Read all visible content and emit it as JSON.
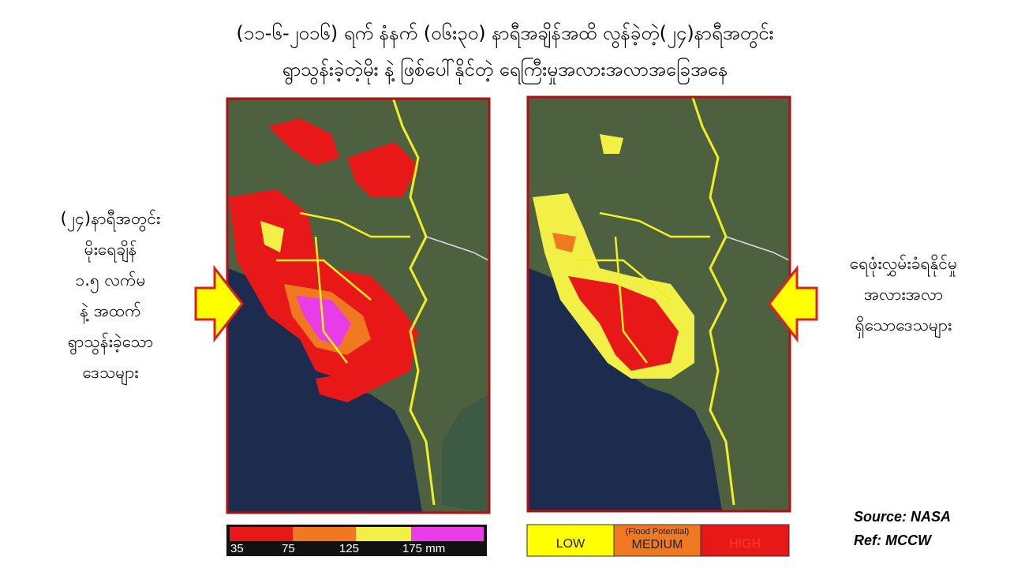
{
  "title": {
    "lines": [
      "(၁၁-၆-၂၀၁၆) ရက် နံနက် (၀၆း၃၀) နာရီအချိန်အထိ လွန်ခဲ့တဲ့(၂၄)နာရီအတွင်း",
      "ရွာသွန်းခဲ့တဲ့မိုး နဲ့ ဖြစ်ပေါ်နိုင်တဲ့ ရေကြီးမှုအလားအလာအခြေအနေ"
    ]
  },
  "left_note": {
    "lines": [
      "(၂၄)နာရီအတွင်း",
      "မိုးရေချိန်",
      "၁.၅ လက်မ",
      "နဲ့ အထက်",
      "ရွာသွန်းခဲ့သော",
      "ဒေသများ"
    ]
  },
  "right_note": {
    "lines": [
      "ရေဖုံးလွှမ်းခံရနိုင်မှု",
      "အလားအလာ",
      "ရှိသောဒေသများ"
    ]
  },
  "rainfall_legend": {
    "labels": [
      "35",
      "75",
      "125",
      "175 mm"
    ]
  },
  "flood_legend": {
    "low": "LOW",
    "caption": "(Flood Potential)",
    "medium": "MEDIUM",
    "high": "HIGH"
  },
  "source": "Source:  NASA",
  "ref": "Ref: MCCW"
}
